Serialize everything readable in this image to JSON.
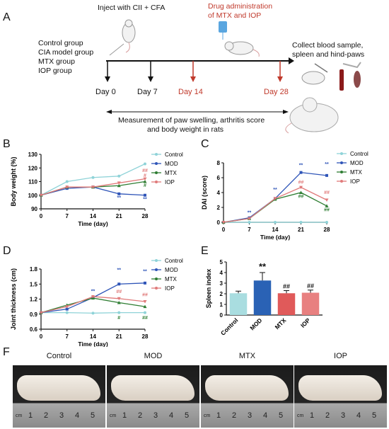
{
  "panels": {
    "A": "A",
    "B": "B",
    "C": "C",
    "D": "D",
    "E": "E",
    "F": "F"
  },
  "timeline": {
    "inject": "Inject with CII + CFA",
    "drug_line1": "Drug administration",
    "drug_line2": "of MTX and IOP",
    "collect_line1": "Collect blood sample,",
    "collect_line2": "spleen and hind-paws",
    "groups": [
      "Control group",
      "CIA model group",
      "MTX group",
      "IOP group"
    ],
    "days": [
      "Day 0",
      "Day 7",
      "Day 14",
      "Day 28"
    ],
    "measure_line1": "Measurement of paw swelling, arthritis score",
    "measure_line2": "and body weight in rats"
  },
  "photos": {
    "captions": [
      "Control",
      "MOD",
      "MTX",
      "IOP"
    ],
    "ruler_unit": "cm",
    "ruler_numbers": [
      "1",
      "2",
      "3",
      "4",
      "5"
    ]
  },
  "colors": {
    "control": "#8fd3d8",
    "mod": "#2f55b8",
    "mtx": "#2e7d32",
    "iop": "#e07a7a",
    "red": "#c0392b"
  },
  "chart_data": [
    {
      "type": "line",
      "panel": "B",
      "ylabel": "Body weight (%)",
      "xlabel": "Time (day)",
      "x": [
        0,
        7,
        14,
        21,
        28
      ],
      "xlim": [
        0,
        28
      ],
      "ylim": [
        90,
        130
      ],
      "yticks": [
        90,
        100,
        110,
        120,
        130
      ],
      "series": [
        {
          "name": "Control",
          "color": "#8fd3d8",
          "values": [
            100,
            110,
            113,
            114,
            123
          ]
        },
        {
          "name": "MOD",
          "color": "#2f55b8",
          "values": [
            100,
            105,
            106,
            101,
            100
          ]
        },
        {
          "name": "MTX",
          "color": "#2e7d32",
          "values": [
            100,
            106,
            106,
            107,
            110
          ]
        },
        {
          "name": "IOP",
          "color": "#e07a7a",
          "values": [
            100,
            106,
            106,
            109,
            112
          ]
        }
      ],
      "annotations": [
        {
          "x": 21,
          "y": 97,
          "text": "**",
          "color": "#2f55b8"
        },
        {
          "x": 28,
          "y": 96,
          "text": "**",
          "color": "#2f55b8"
        },
        {
          "x": 28,
          "y": 117,
          "text": "##",
          "color": "#e07a7a"
        },
        {
          "x": 28,
          "y": 113.5,
          "text": "#",
          "color": "#e07a7a"
        },
        {
          "x": 28,
          "y": 106,
          "text": "#",
          "color": "#2e7d32"
        }
      ]
    },
    {
      "type": "line",
      "panel": "C",
      "ylabel": "DAI (score)",
      "xlabel": "Time (day)",
      "x": [
        0,
        7,
        14,
        21,
        28
      ],
      "xlim": [
        0,
        28
      ],
      "ylim": [
        0,
        8
      ],
      "yticks": [
        0,
        2,
        4,
        6,
        8
      ],
      "series": [
        {
          "name": "Control",
          "color": "#8fd3d8",
          "values": [
            0,
            0,
            0,
            0,
            0
          ]
        },
        {
          "name": "MOD",
          "color": "#2f55b8",
          "values": [
            0,
            0.6,
            3.2,
            6.7,
            6.3
          ]
        },
        {
          "name": "MTX",
          "color": "#2e7d32",
          "values": [
            0,
            0.5,
            3.1,
            4.0,
            2.2
          ]
        },
        {
          "name": "IOP",
          "color": "#e07a7a",
          "values": [
            0,
            0.5,
            3.2,
            4.7,
            3.0
          ]
        }
      ],
      "annotations": [
        {
          "x": 7,
          "y": 1.1,
          "text": "**",
          "color": "#2f55b8"
        },
        {
          "x": 14,
          "y": 4.2,
          "text": "**",
          "color": "#2f55b8"
        },
        {
          "x": 21,
          "y": 7.5,
          "text": "**",
          "color": "#2f55b8"
        },
        {
          "x": 28,
          "y": 7.6,
          "text": "**",
          "color": "#2f55b8"
        },
        {
          "x": 21,
          "y": 5.2,
          "text": "##",
          "color": "#e07a7a"
        },
        {
          "x": 21,
          "y": 3.3,
          "text": "##",
          "color": "#2e7d32"
        },
        {
          "x": 28,
          "y": 3.8,
          "text": "##",
          "color": "#e07a7a"
        },
        {
          "x": 28,
          "y": 1.5,
          "text": "##",
          "color": "#2e7d32"
        }
      ]
    },
    {
      "type": "line",
      "panel": "D",
      "ylabel": "Joint thickness (cm)",
      "xlabel": "Time (day)",
      "x": [
        0,
        7,
        14,
        21,
        28
      ],
      "xlim": [
        0,
        28
      ],
      "ylim": [
        0.6,
        1.8
      ],
      "yticks": [
        0.6,
        0.9,
        1.2,
        1.5,
        1.8
      ],
      "series": [
        {
          "name": "Control",
          "color": "#8fd3d8",
          "values": [
            0.93,
            0.93,
            0.92,
            0.93,
            0.93
          ]
        },
        {
          "name": "MOD",
          "color": "#2f55b8",
          "values": [
            0.93,
            1.0,
            1.23,
            1.5,
            1.52
          ]
        },
        {
          "name": "MTX",
          "color": "#2e7d32",
          "values": [
            0.93,
            1.08,
            1.22,
            1.13,
            1.05
          ]
        },
        {
          "name": "IOP",
          "color": "#e07a7a",
          "values": [
            0.93,
            1.05,
            1.25,
            1.21,
            1.15
          ]
        }
      ],
      "annotations": [
        {
          "x": 14,
          "y": 1.33,
          "text": "**",
          "color": "#2f55b8"
        },
        {
          "x": 21,
          "y": 1.75,
          "text": "**",
          "color": "#2f55b8"
        },
        {
          "x": 28,
          "y": 1.72,
          "text": "**",
          "color": "#2f55b8"
        },
        {
          "x": 21,
          "y": 1.32,
          "text": "##",
          "color": "#e07a7a"
        },
        {
          "x": 21,
          "y": 0.8,
          "text": "#",
          "color": "#2e7d32"
        },
        {
          "x": 28,
          "y": 1.26,
          "text": "##",
          "color": "#e07a7a"
        },
        {
          "x": 28,
          "y": 0.8,
          "text": "##",
          "color": "#2e7d32"
        }
      ]
    },
    {
      "type": "bar",
      "panel": "E",
      "ylabel": "Spleen index",
      "categories": [
        "Control",
        "MOD",
        "MTX",
        "IOP"
      ],
      "values": [
        2.05,
        3.25,
        2.05,
        2.1
      ],
      "errors": [
        0.2,
        0.75,
        0.25,
        0.25
      ],
      "colors": [
        "#a9dde0",
        "#2a62b5",
        "#e05a5a",
        "#e88080"
      ],
      "ylim": [
        0,
        5
      ],
      "yticks": [
        0,
        1,
        2,
        3,
        4,
        5
      ],
      "annotations": [
        {
          "index": 1,
          "text": "**",
          "color": "#111"
        },
        {
          "index": 2,
          "text": "##",
          "color": "#111"
        },
        {
          "index": 3,
          "text": "##",
          "color": "#111"
        }
      ]
    }
  ]
}
